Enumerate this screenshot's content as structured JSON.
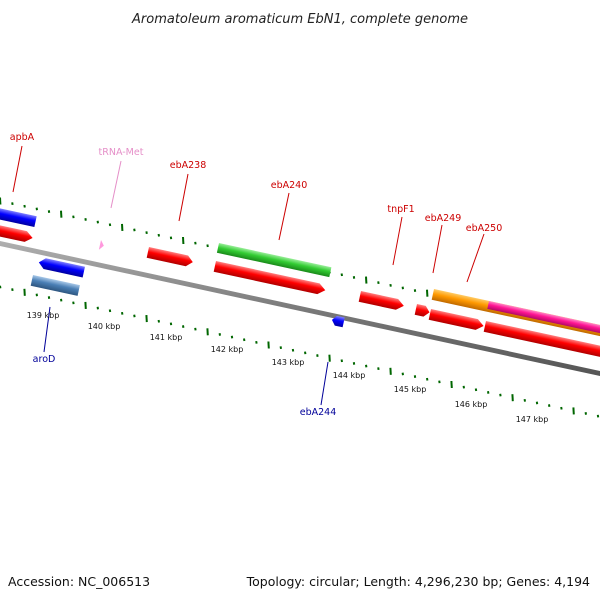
{
  "title": "Aromatoleum aromaticum EbN1, complete genome",
  "footer": {
    "accession": "Accession: NC_006513",
    "summary": "Topology: circular; Length: 4,296,230 bp; Genes: 4,194"
  },
  "scale_labels": [
    "139 kbp",
    "140 kbp",
    "141 kbp",
    "142 kbp",
    "143 kbp",
    "144 kbp",
    "145 kbp",
    "146 kbp",
    "147 kbp"
  ],
  "gene_labels": {
    "apbA": "apbA",
    "trna_met": "tRNA-Met",
    "ebA238": "ebA238",
    "ebA240": "ebA240",
    "tnpF1": "tnpF1",
    "ebA249": "ebA249",
    "ebA250": "ebA250",
    "aroD": "aroD",
    "ebA244": "ebA244"
  },
  "colors": {
    "label_forward": "#cc0000",
    "label_reverse": "#000099",
    "label_trna": "#e58fc8",
    "cds_red": "#ff0000",
    "cds_blue": "#0000ff",
    "cds_green": "#33cc33",
    "cds_orange": "#ff9900",
    "cds_magenta": "#ff1493",
    "cds_steel": "#4a7fb5",
    "trna_pink": "#ff99dd",
    "tick_green": "#006600",
    "backbone": "#808080"
  }
}
